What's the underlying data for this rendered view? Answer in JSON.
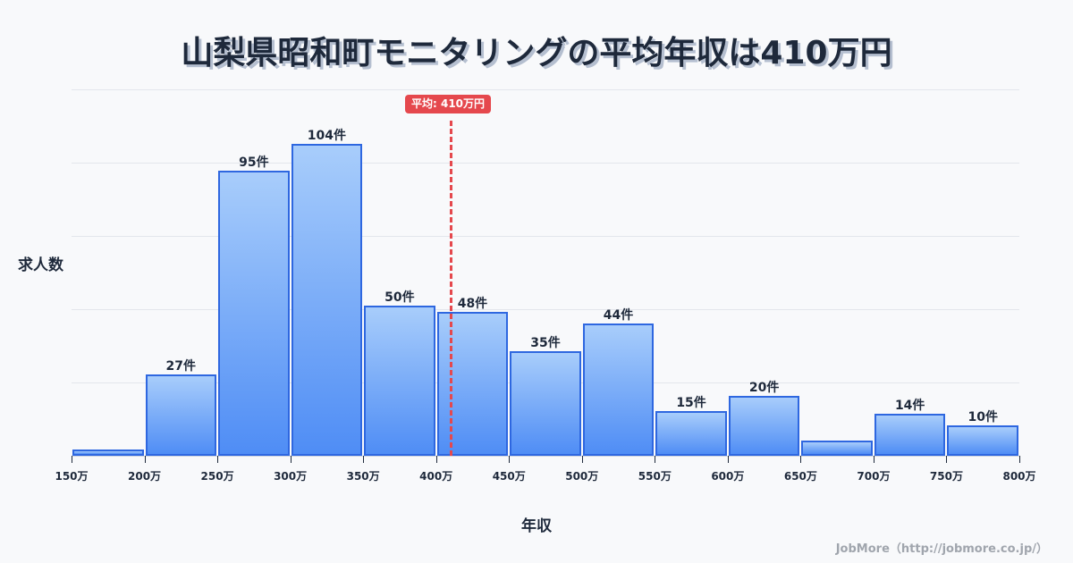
{
  "title": "山梨県昭和町モニタリングの平均年収は410万円",
  "mean_badge": "平均: 410万円",
  "ylabel": "求人数",
  "xlabel": "年収",
  "credit": "JobMore（http://jobmore.co.jp/）",
  "colors": {
    "bar_top": "#a8cdfb",
    "bar_bottom": "#4f8df5",
    "bar_border": "#2e67e0",
    "mean_line": "#e5484d",
    "text": "#1e293b",
    "background": "#f8f9fb"
  },
  "chart_data": {
    "type": "bar",
    "title": "山梨県昭和町モニタリングの平均年収は410万円",
    "xlabel": "年収",
    "ylabel": "求人数",
    "categories": [
      "150-200万",
      "200-250万",
      "250-300万",
      "300-350万",
      "350-400万",
      "400-450万",
      "450-500万",
      "500-550万",
      "550-600万",
      "600-650万",
      "650-700万",
      "700-750万",
      "750-800万"
    ],
    "values": [
      2,
      27,
      95,
      104,
      50,
      48,
      35,
      44,
      15,
      20,
      5,
      14,
      10
    ],
    "labels": [
      "",
      "27件",
      "95件",
      "104件",
      "50件",
      "48件",
      "35件",
      "44件",
      "15件",
      "20件",
      "",
      "14件",
      "10件"
    ],
    "x_ticks": [
      "150万",
      "200万",
      "250万",
      "300万",
      "350万",
      "400万",
      "450万",
      "500万",
      "550万",
      "600万",
      "650万",
      "700万",
      "750万",
      "800万"
    ],
    "mean": 410,
    "mean_label": "平均: 410万円",
    "grid": true,
    "ylim": [
      0,
      125
    ]
  }
}
